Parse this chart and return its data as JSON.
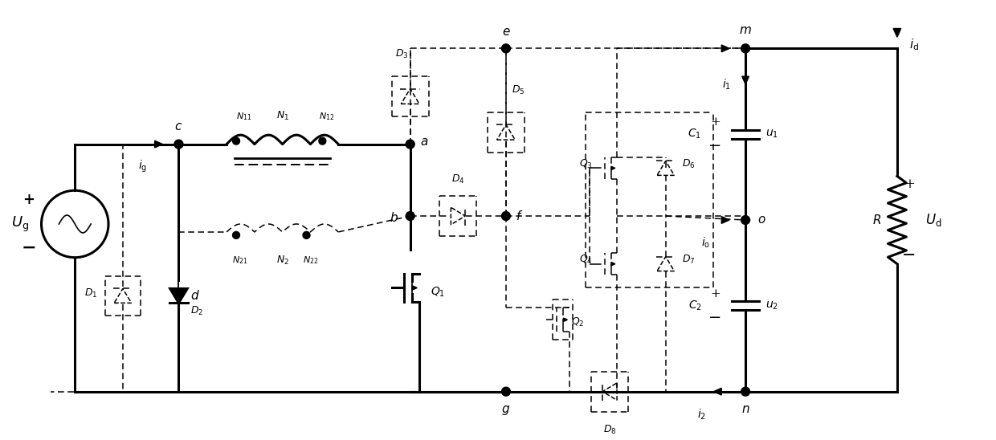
{
  "figsize": [
    12.4,
    5.48
  ],
  "dpi": 100,
  "background": "white",
  "lw_thick": 2.2,
  "lw_thin": 1.2,
  "lw_dash": 1.1
}
